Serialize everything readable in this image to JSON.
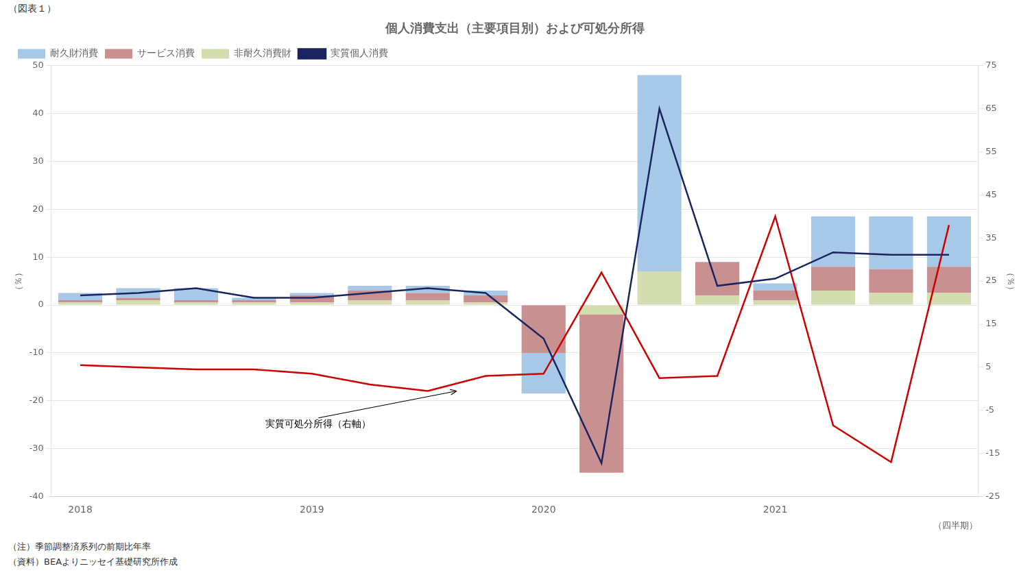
{
  "chart_data": {
    "type": "bar",
    "title": "個人消費支出（主要項目別）および可処分所得",
    "figure_label": "（図表１）",
    "x_label": "（四半期）",
    "y_label": "（％）",
    "y2_label": "（％）",
    "notes": [
      "（注）季節調整済系列の前期比年率",
      "（資料）BEAよりニッセイ基礎研究所作成"
    ],
    "categories": [
      "2018",
      null,
      null,
      null,
      "2019",
      null,
      null,
      null,
      "2020",
      null,
      null,
      null,
      "2021",
      null,
      null,
      null
    ],
    "series": [
      {
        "name": "耐久財消費",
        "color": "#a8c8e8",
        "values": [
          1.5,
          2.0,
          2.5,
          0.5,
          0.5,
          1.0,
          1.5,
          1.0,
          -8.5,
          0.0,
          41.0,
          0.0,
          1.5,
          10.5,
          11.0,
          10.5
        ]
      },
      {
        "name": "サービス消費",
        "color": "#c89090",
        "values": [
          0.5,
          0.5,
          0.5,
          0.5,
          1.5,
          2.0,
          1.5,
          1.5,
          -10.0,
          -33.0,
          0.0,
          7.0,
          2.0,
          5.0,
          5.0,
          5.5
        ]
      },
      {
        "name": "非耐久消費財",
        "color": "#d4ddb0",
        "values": [
          0.5,
          1.0,
          0.5,
          0.5,
          0.5,
          1.0,
          1.0,
          0.5,
          0.0,
          -2.0,
          7.0,
          2.0,
          1.0,
          3.0,
          2.5,
          2.5
        ]
      },
      {
        "name": "実質個人消費",
        "type": "line",
        "color": "#1a2560",
        "values": [
          2.0,
          2.5,
          3.5,
          1.5,
          1.5,
          2.5,
          3.5,
          2.5,
          -7.0,
          -33.0,
          41.0,
          4.0,
          5.5,
          11.0,
          10.5,
          10.5
        ]
      },
      {
        "type": "line",
        "color": "#cc0000",
        "axis": "y2",
        "values": [
          5.5,
          5.0,
          4.5,
          4.5,
          3.5,
          1.0,
          -0.5,
          3.0,
          3.5,
          27.0,
          2.5,
          3.0,
          40.0,
          -8.5,
          -17.0,
          38.0
        ]
      }
    ],
    "ylim": [
      -40,
      50
    ],
    "yticks": [
      -40,
      -30,
      -20,
      -10,
      0,
      10,
      20,
      30,
      40,
      50
    ],
    "y2lim": [
      -25,
      75
    ],
    "y2ticks": [
      -25,
      -15,
      -5,
      5,
      15,
      25,
      35,
      45,
      55,
      65,
      75
    ],
    "stacked": true,
    "grid": true,
    "legend": "upper left",
    "annotations": [
      {
        "text": "実質可処分所得（右軸）",
        "x": 6.5,
        "y": -0.5,
        "axis": "y2",
        "text_x": 3.2,
        "text_y": -25.0
      }
    ]
  }
}
